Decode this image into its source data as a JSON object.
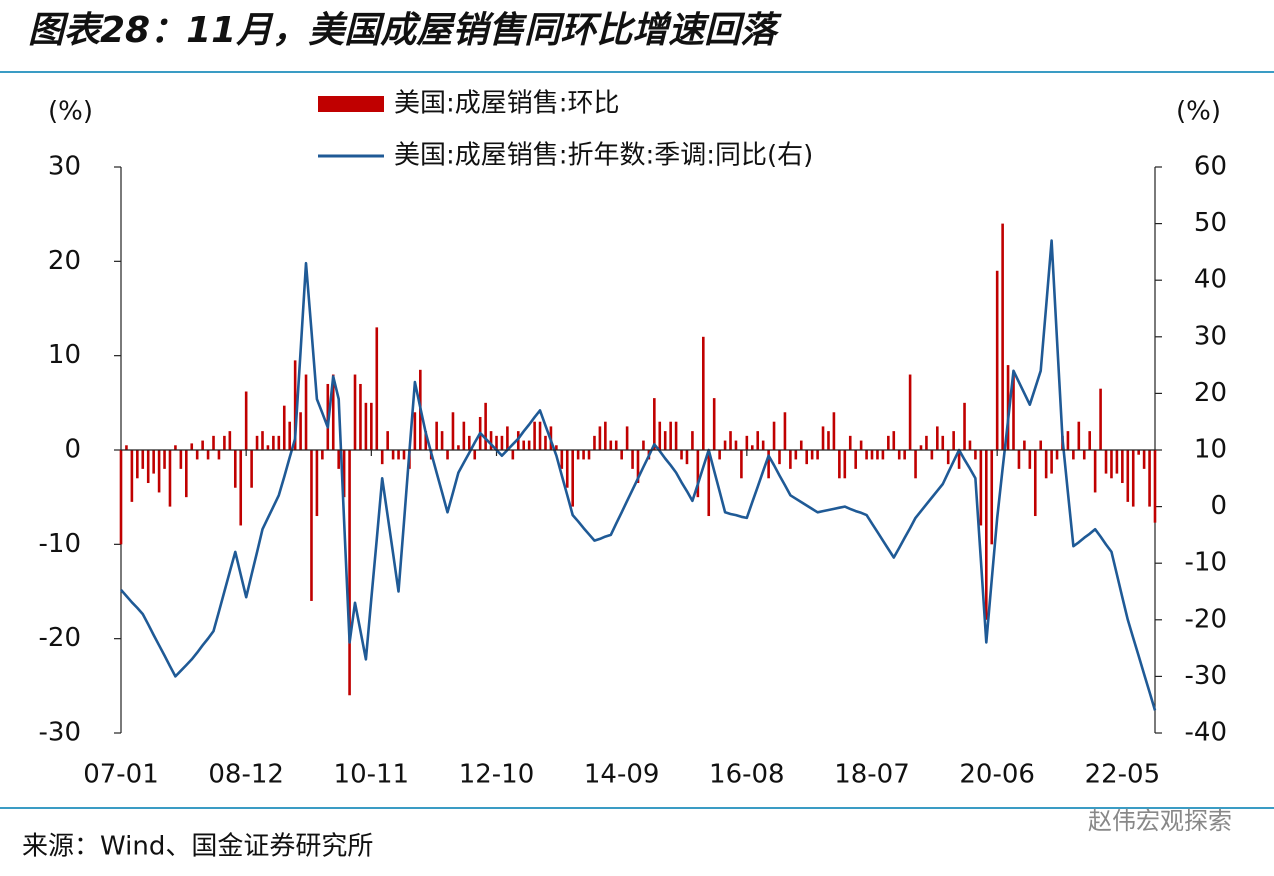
{
  "chart_data": {
    "type": "bar-line",
    "title": "图表28：11月，美国成屋销售同环比增速回落",
    "source": "来源：Wind、国金证券研究所",
    "watermark": "赵伟宏观探索",
    "y_unit": "(%)",
    "y2_unit": "(%)",
    "ylim": [
      -30,
      30
    ],
    "yticks": [
      -30,
      -20,
      -10,
      0,
      10,
      20,
      30
    ],
    "y2lim": [
      -40,
      60
    ],
    "y2ticks": [
      -40,
      -30,
      -20,
      -10,
      0,
      10,
      20,
      30,
      40,
      50,
      60
    ],
    "categories": [
      "07-01",
      null,
      null,
      null,
      null,
      null,
      null,
      null,
      null,
      null,
      null,
      null,
      null,
      null,
      null,
      null,
      null,
      null,
      null,
      null,
      null,
      null,
      null,
      "08-12",
      null,
      null,
      null,
      null,
      null,
      null,
      null,
      null,
      null,
      null,
      null,
      null,
      null,
      null,
      null,
      null,
      null,
      null,
      null,
      null,
      null,
      null,
      "10-11",
      null,
      null,
      null,
      null,
      null,
      null,
      null,
      null,
      null,
      null,
      null,
      null,
      null,
      null,
      null,
      null,
      null,
      null,
      null,
      null,
      null,
      null,
      "12-10",
      null,
      null,
      null,
      null,
      null,
      null,
      null,
      null,
      null,
      null,
      null,
      null,
      null,
      null,
      null,
      null,
      null,
      null,
      null,
      null,
      null,
      null,
      "14-09",
      null,
      null,
      null,
      null,
      null,
      null,
      null,
      null,
      null,
      null,
      null,
      null,
      null,
      null,
      null,
      null,
      null,
      null,
      null,
      null,
      null,
      null,
      "16-08",
      null,
      null,
      null,
      null,
      null,
      null,
      null,
      null,
      null,
      null,
      null,
      null,
      null,
      null,
      null,
      null,
      null,
      null,
      null,
      null,
      null,
      null,
      "18-07",
      null,
      null,
      null,
      null,
      null,
      null,
      null,
      null,
      null,
      null,
      null,
      null,
      null,
      null,
      null,
      null,
      null,
      null,
      null,
      null,
      null,
      null,
      "20-06",
      null,
      null,
      null,
      null,
      null,
      null,
      null,
      null,
      null,
      null,
      null,
      null,
      null,
      null,
      null,
      null,
      null,
      null,
      null,
      null,
      null,
      null,
      "22-05",
      null,
      null,
      null,
      null,
      null,
      null
    ],
    "series": [
      {
        "name": "美国:成屋销售:环比",
        "type": "bar",
        "color": "#c00000",
        "values": [
          -10,
          0.5,
          -5.5,
          -3,
          -2,
          -3.5,
          -2.5,
          -4.5,
          -2,
          -6,
          0.5,
          -2,
          -5,
          0.7,
          -1,
          1,
          -1,
          1.5,
          -1,
          1.5,
          2,
          -4,
          -8,
          6.2,
          -4,
          1.5,
          2,
          0.5,
          1.5,
          1.5,
          4.7,
          3,
          9.5,
          4,
          8,
          -16,
          -7,
          -1,
          7,
          8,
          -2,
          -5,
          -26,
          8,
          7,
          5,
          5,
          13,
          -1.5,
          2,
          -1,
          -1,
          -1,
          -2,
          4,
          8.5,
          2,
          -1,
          3,
          2,
          -1,
          4,
          0.5,
          3,
          1.5,
          -1,
          3.5,
          5,
          2,
          1.5,
          1.5,
          2.5,
          -1,
          2,
          1,
          1,
          3,
          3,
          1.5,
          2.5,
          0.5,
          -2,
          -4,
          -6,
          -1,
          -1,
          -1,
          1.5,
          2.5,
          3,
          1,
          1,
          -1,
          2.5,
          -2,
          -3.5,
          1,
          -1,
          5.5,
          3,
          2,
          3,
          3,
          -1,
          -1.5,
          2,
          -5,
          12,
          -7,
          5.5,
          -1,
          1,
          2,
          1,
          -3,
          1.5,
          0.5,
          2,
          1,
          -3,
          3,
          -1.5,
          4,
          -2,
          -1,
          1,
          -1.5,
          -1,
          -1,
          2.5,
          2,
          4,
          -3,
          -3,
          1.5,
          -2,
          1,
          -1,
          -1,
          -1,
          -1,
          1.5,
          2,
          -1,
          -1,
          8,
          -3,
          0.5,
          1.5,
          -1,
          2.5,
          1.5,
          -1.5,
          2,
          -2,
          5,
          1,
          -1,
          -8,
          -18,
          -10,
          19,
          24,
          9,
          8,
          -2,
          1,
          -2,
          -7,
          1,
          -3,
          -2.5,
          -1,
          1.5,
          2,
          -1,
          3,
          -1,
          2,
          -4.5,
          6.5,
          -2.5,
          -3,
          -2.5,
          -3.5,
          -5.5,
          -6,
          -0.5,
          -2,
          -6,
          -7.7
        ]
      },
      {
        "name": "美国:成屋销售:折年数:季调:同比(右)",
        "type": "line",
        "axis": "y2",
        "color": "#1f5a96",
        "values": [
          -14.7,
          -15.8,
          -16.9,
          -17.9,
          -19,
          -20.8,
          -22.7,
          -24.5,
          -26.3,
          -28.2,
          -30,
          -29,
          -28,
          -27,
          -25.8,
          -24.5,
          -23.3,
          -22,
          -18.5,
          -15,
          -11.5,
          -8,
          -12,
          -16,
          -12,
          -8,
          -4,
          -2,
          0,
          2,
          5.3,
          8.7,
          12,
          27.5,
          43,
          31,
          19,
          16.5,
          14,
          23,
          19,
          -2.5,
          -24,
          -17,
          -22,
          -27,
          -16.3,
          -5.7,
          5,
          -1.7,
          -8.3,
          -15,
          -2.7,
          9.7,
          22,
          17.5,
          13,
          9.5,
          6,
          2.5,
          -1,
          2.5,
          6,
          7.8,
          9.5,
          11.3,
          13,
          12,
          11,
          10,
          9,
          10,
          11,
          12,
          13.3,
          14.5,
          15.8,
          17,
          14.3,
          11.7,
          9,
          5.5,
          2,
          -1.5,
          -2.6,
          -3.8,
          -4.9,
          -6,
          -5.7,
          -5.3,
          -5,
          -3,
          -1,
          1,
          3,
          5,
          7,
          9,
          11,
          9.8,
          8.5,
          7.3,
          6,
          4.3,
          2.7,
          1,
          4,
          7,
          10,
          6.3,
          2.7,
          -1,
          -1.3,
          -1.5,
          -1.8,
          -2,
          0.8,
          3.5,
          6.3,
          9,
          7.3,
          5.5,
          3.8,
          2,
          1.4,
          0.8,
          0.2,
          -0.4,
          -1,
          -0.8,
          -0.6,
          -0.4,
          -0.2,
          0,
          -0.4,
          -0.8,
          -1.1,
          -1.5,
          -3,
          -4.5,
          -6,
          -7.5,
          -9,
          -7.3,
          -5.5,
          -3.8,
          -2,
          -0.8,
          0.4,
          1.6,
          2.8,
          4,
          6,
          8,
          10,
          8.3,
          6.7,
          5,
          -9.5,
          -24,
          -13,
          -2,
          6.7,
          15.3,
          24,
          22,
          20,
          18,
          21,
          24,
          35.5,
          47,
          29.5,
          12,
          2.5,
          -7,
          -6.3,
          -5.5,
          -4.8,
          -4,
          -5.3,
          -6.7,
          -8,
          -12,
          -16,
          -20,
          -23.2,
          -26.4,
          -29.6,
          -32.8,
          -36
        ]
      }
    ]
  }
}
